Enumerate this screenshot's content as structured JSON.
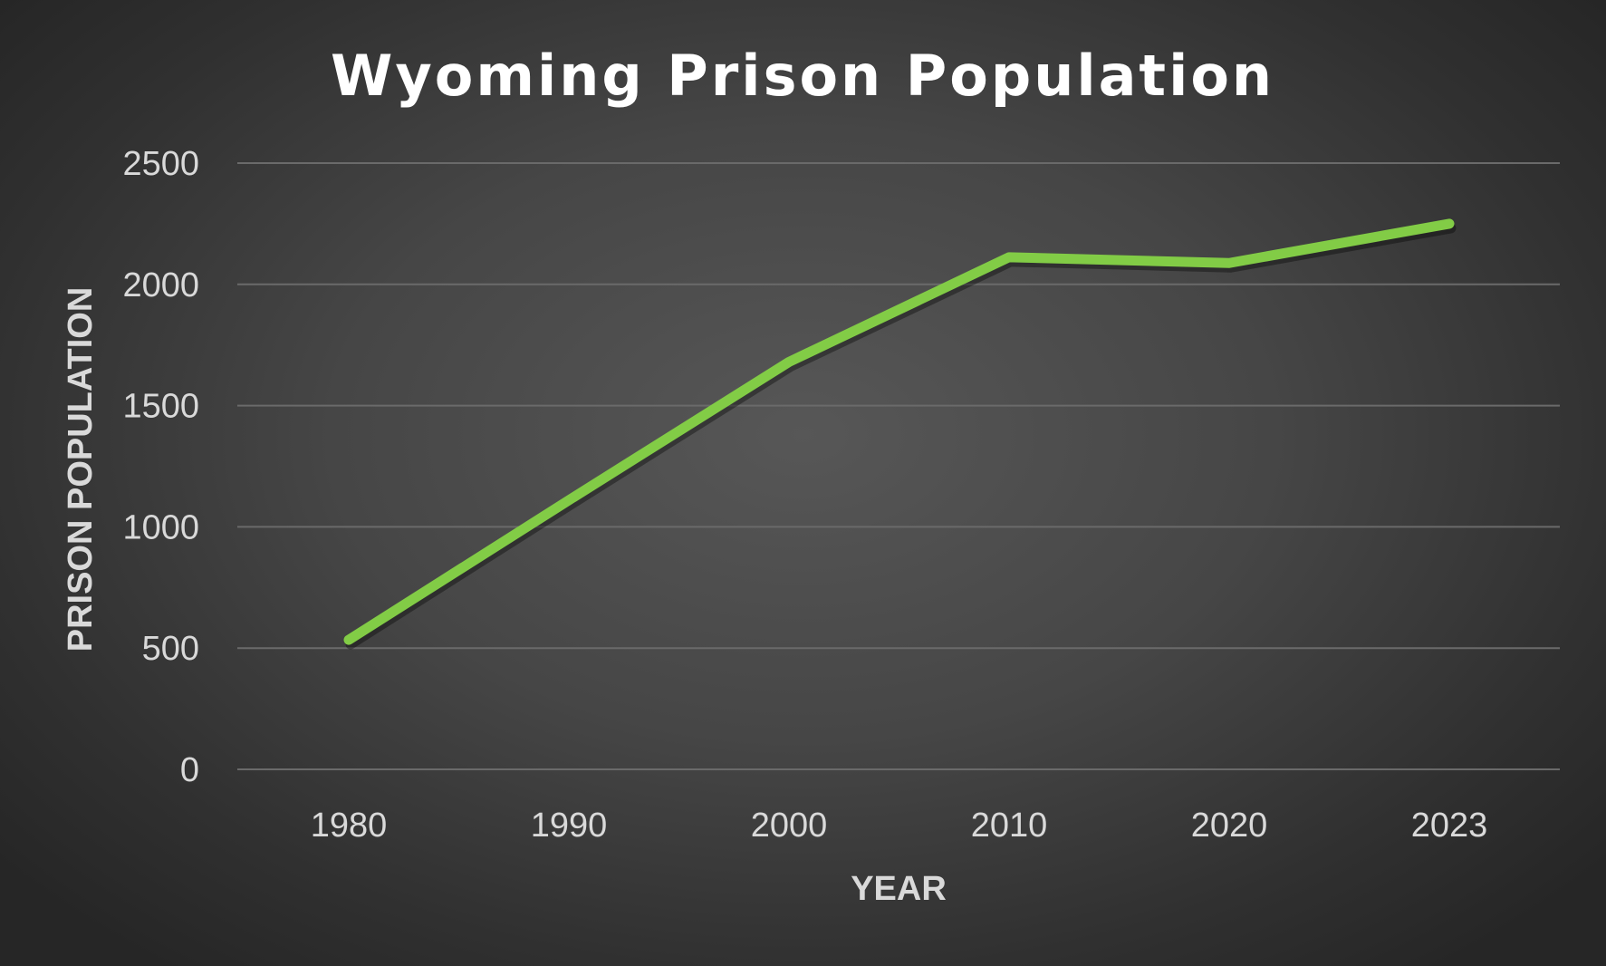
{
  "chart_data": {
    "type": "line",
    "title": "Wyoming Prison Population",
    "xlabel": "YEAR",
    "ylabel": "PRISON POPULATION",
    "categories": [
      "1980",
      "1990",
      "2000",
      "2010",
      "2020",
      "2023"
    ],
    "series": [
      {
        "values": [
          534,
          1110,
          1680,
          2112,
          2088,
          2250
        ]
      }
    ],
    "ylim": [
      0,
      2500
    ],
    "yticks": [
      "0",
      "500",
      "1000",
      "1500",
      "2000",
      "2500"
    ],
    "grid": true,
    "legend": "none",
    "colors": {
      "line": "#82cc46",
      "background": "#3e3e3e"
    }
  }
}
